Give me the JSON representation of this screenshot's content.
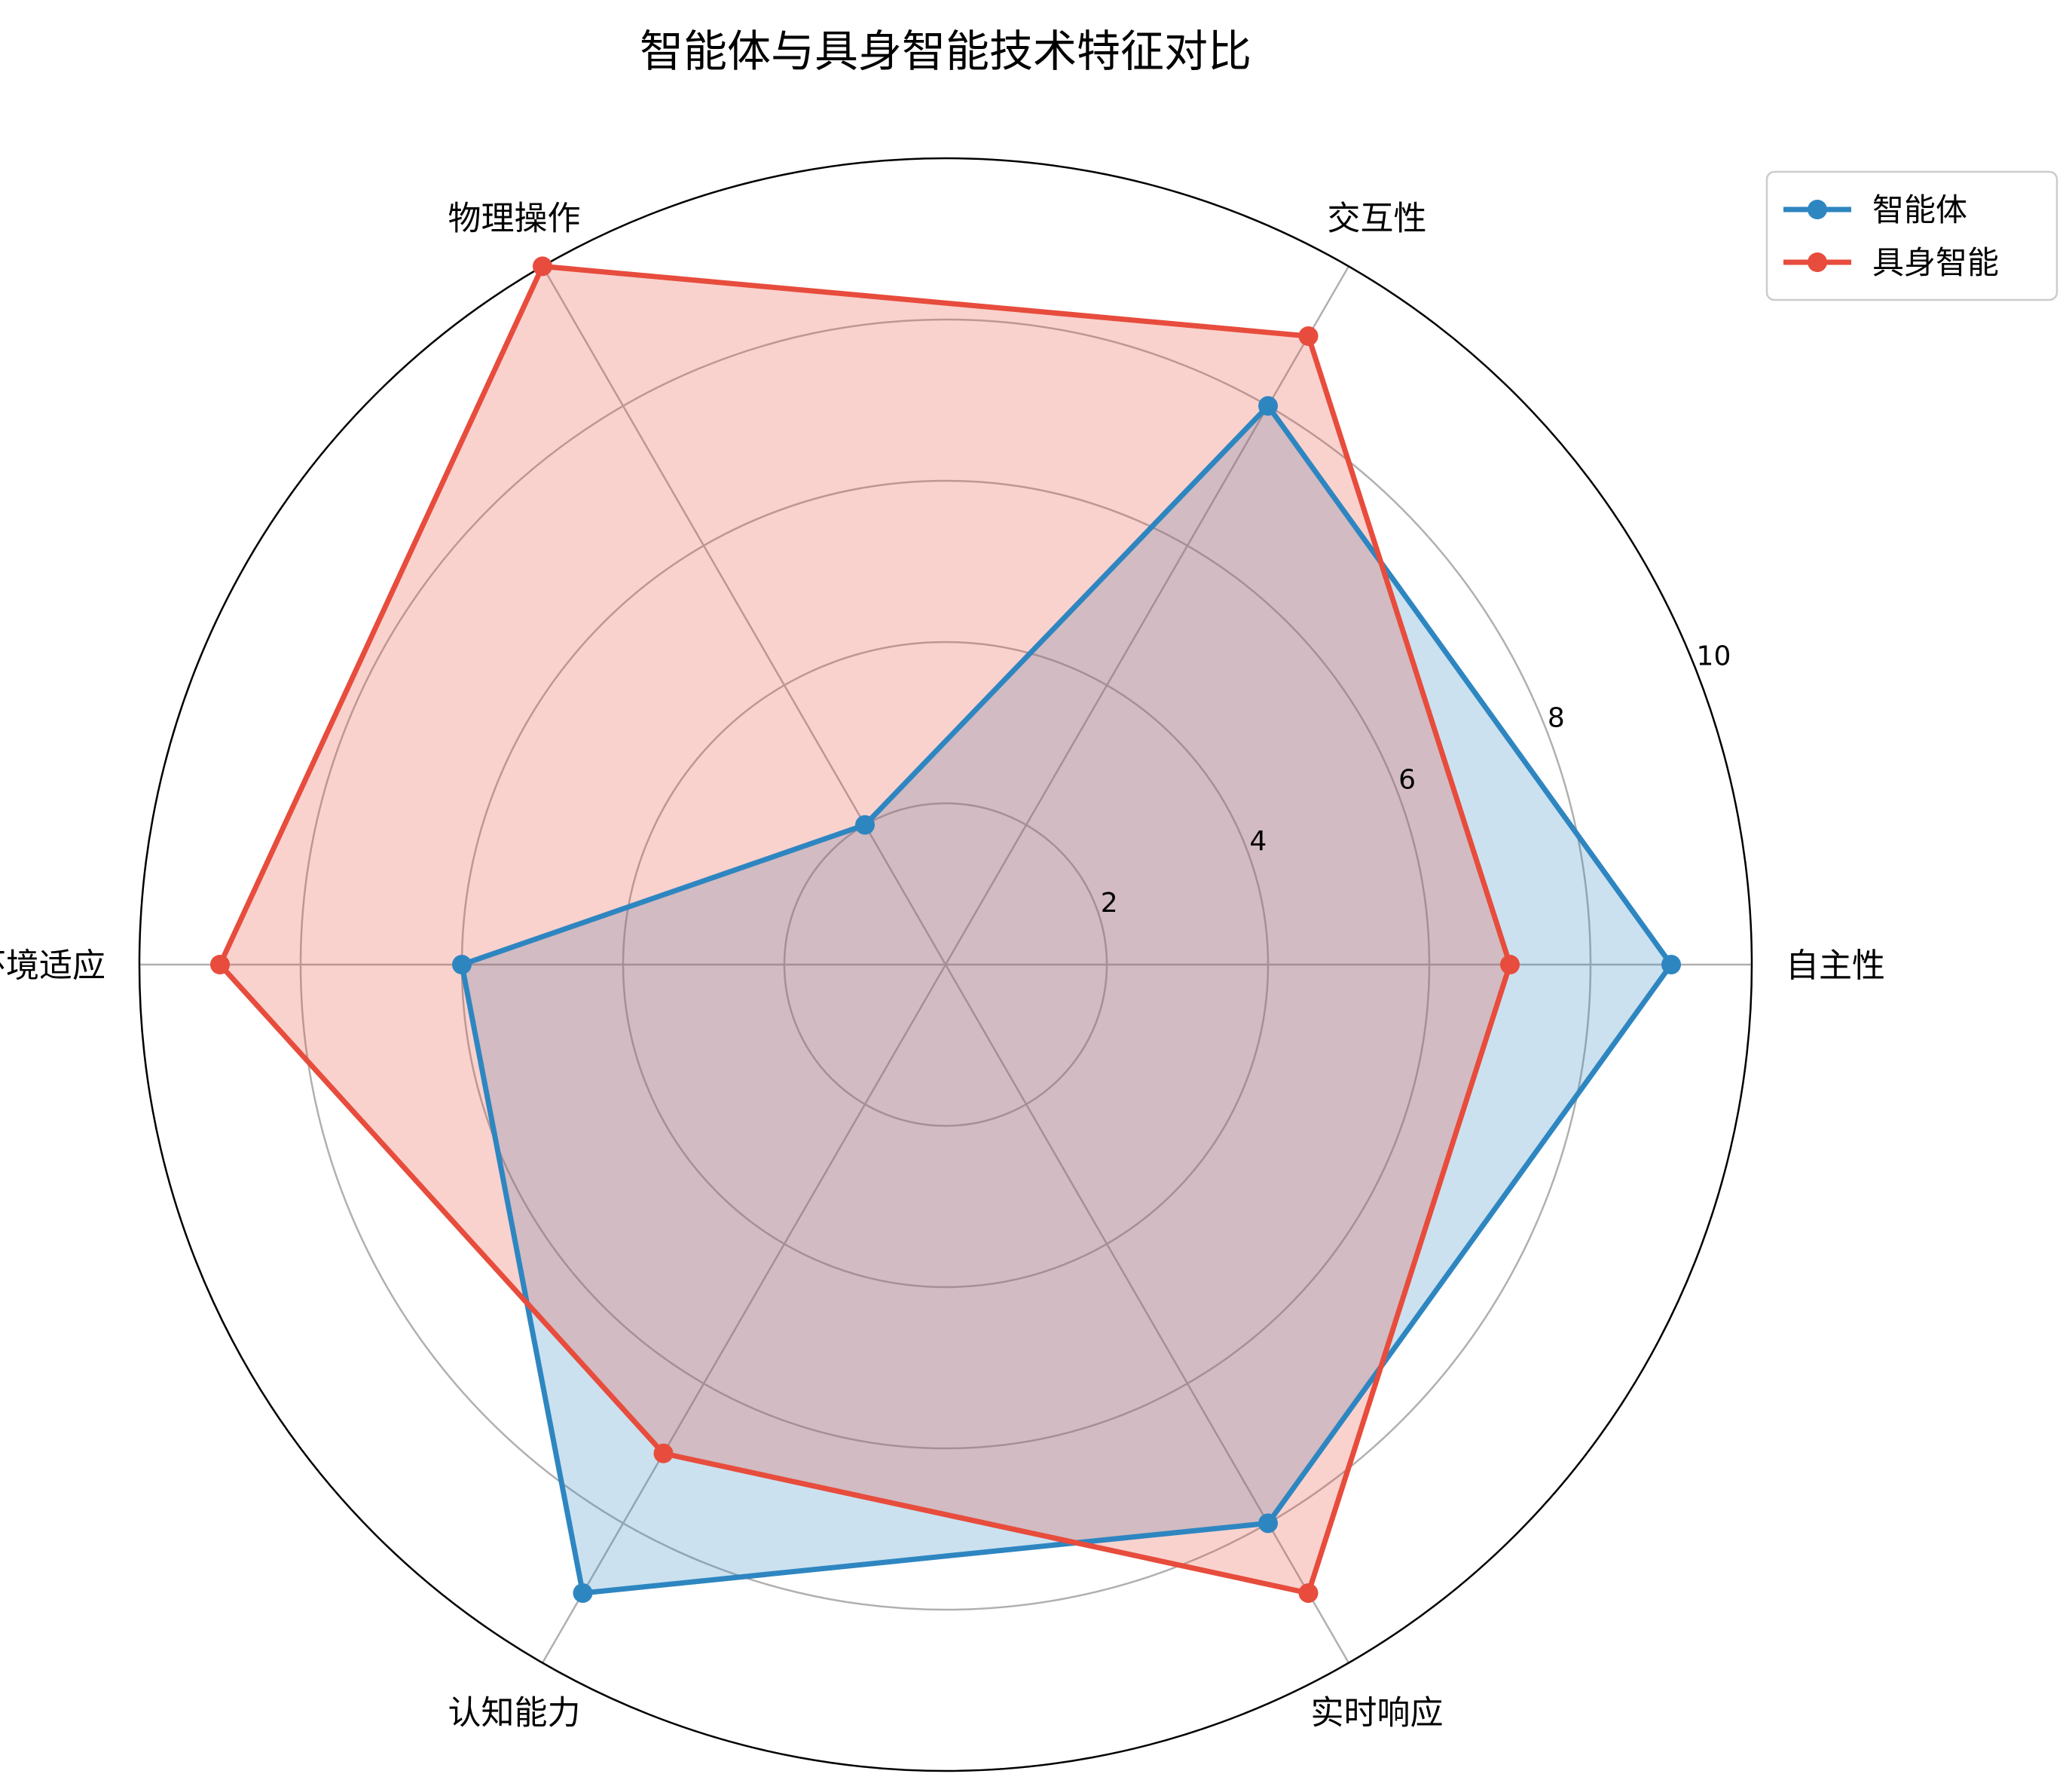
{
  "chart_data": {
    "type": "radar",
    "title": "智能体与具身智能技术特征对比",
    "axes": [
      "自主性",
      "交互性",
      "物理操作",
      "环境适应",
      "认知能力",
      "实时响应"
    ],
    "rlim": [
      0,
      10
    ],
    "rticks": [
      2,
      4,
      6,
      8,
      10
    ],
    "grid": true,
    "legend_position": "top-right",
    "series": [
      {
        "name": "智能体",
        "values": [
          9,
          8,
          2,
          6,
          9,
          8
        ],
        "color": "#2e86c1"
      },
      {
        "name": "具身智能",
        "values": [
          7,
          9,
          10,
          9,
          7,
          9
        ],
        "color": "#e74c3c"
      }
    ]
  }
}
